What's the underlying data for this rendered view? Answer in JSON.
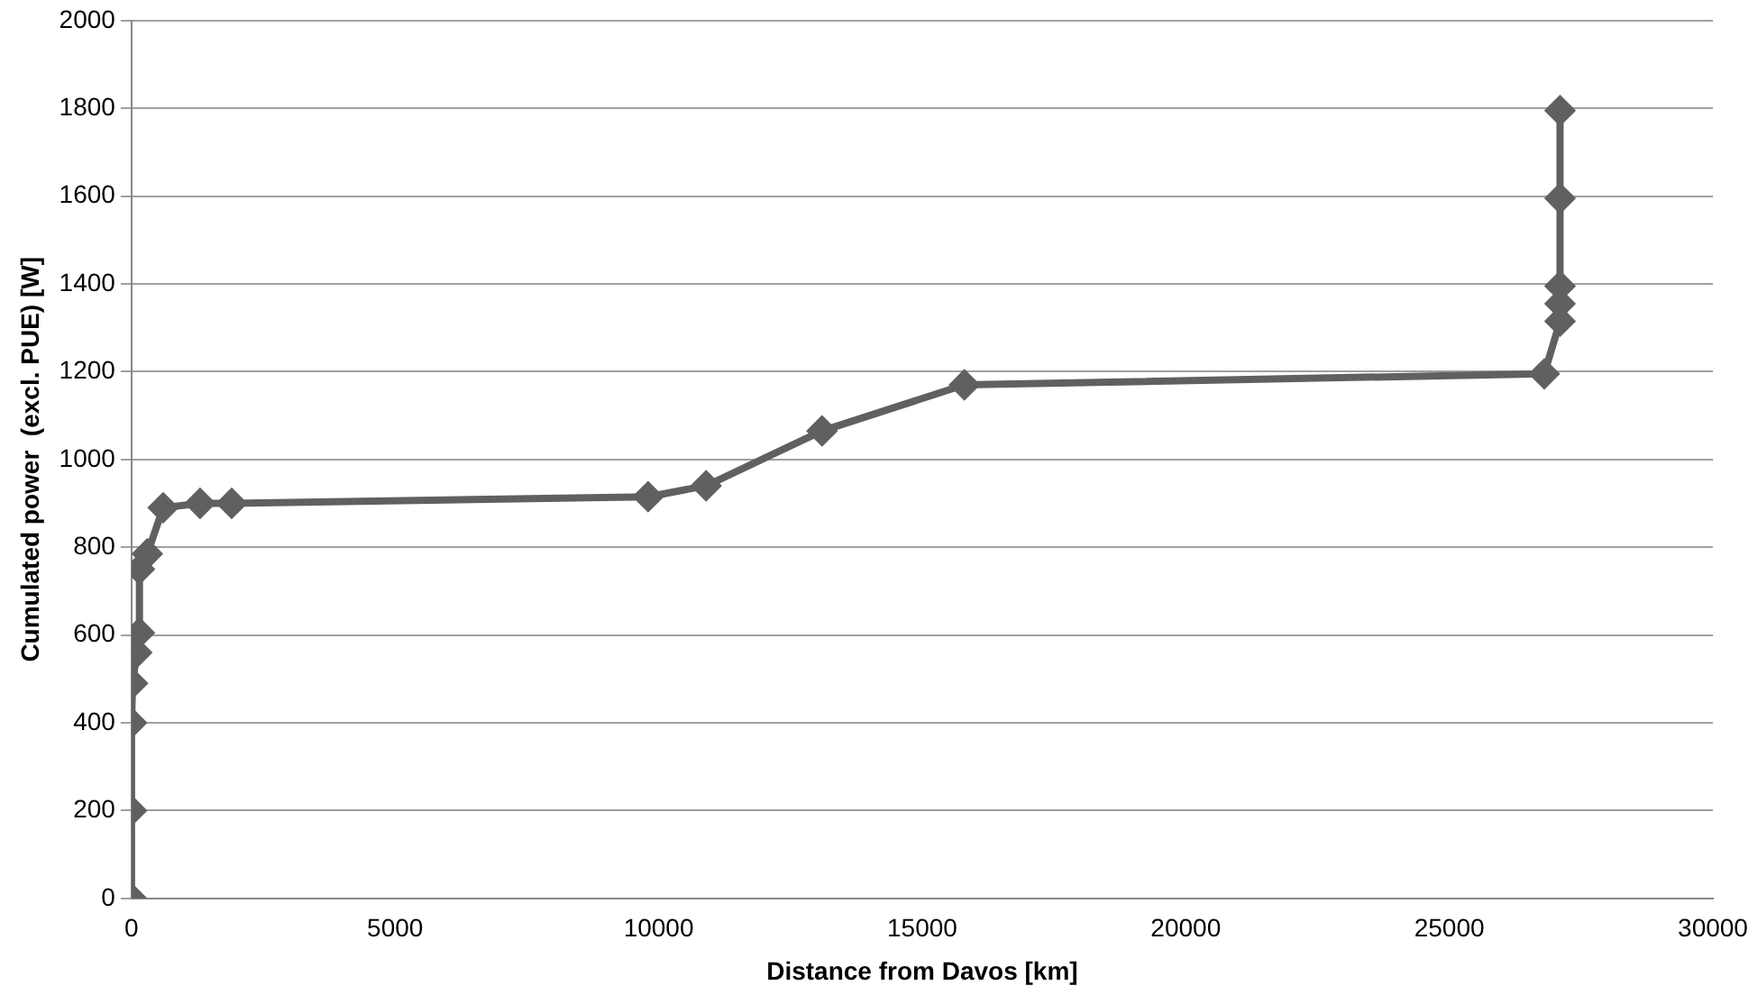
{
  "chart_data": {
    "type": "line",
    "xlabel": "Distance from Davos [km]",
    "ylabel": "Cumulated power  (excl. PUE) [W]",
    "x": [
      0,
      0,
      0,
      20,
      100,
      150,
      150,
      300,
      600,
      1300,
      1900,
      9800,
      10900,
      13100,
      15800,
      26800,
      27100,
      27100,
      27100,
      27100,
      27100
    ],
    "series": [
      {
        "color": "#606060",
        "values": [
          0,
          200,
          400,
          490,
          560,
          605,
          750,
          785,
          890,
          900,
          900,
          915,
          940,
          1065,
          1170,
          1195,
          1315,
          1355,
          1395,
          1595,
          1795
        ]
      }
    ],
    "xlim": [
      0,
      30000
    ],
    "xticks": [
      0,
      5000,
      10000,
      15000,
      20000,
      25000,
      30000
    ],
    "ylim": [
      0,
      2000
    ],
    "yticks": [
      0,
      200,
      400,
      600,
      800,
      1000,
      1200,
      1400,
      1600,
      1800,
      2000
    ],
    "grid": "y",
    "marker": "diamond",
    "line_style": "solid",
    "legend": false
  }
}
